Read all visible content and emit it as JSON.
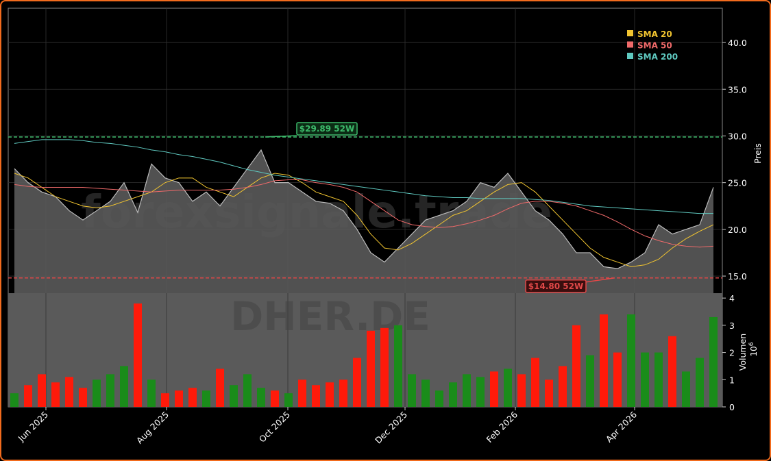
{
  "chart_data": {
    "type": "stock",
    "ticker_watermark": "DHER.DE",
    "site_watermark": "forexsignale.trade",
    "ylabel": "Preis",
    "volume_label": "Volumen",
    "volume_multiplier": {
      "base": "10",
      "exponent": "6"
    },
    "ylim": [
      13.17,
      43.67
    ],
    "yticks": [
      {
        "value": 15,
        "label": "15.0"
      },
      {
        "value": 20,
        "label": "20.0"
      },
      {
        "value": 25,
        "label": "25.0"
      },
      {
        "value": 30,
        "label": "30.0"
      },
      {
        "value": 35,
        "label": "35.0"
      },
      {
        "value": 40,
        "label": "40.0"
      }
    ],
    "volume_ylim": [
      0,
      4.18
    ],
    "volume_yticks": [
      0,
      1,
      2,
      3,
      4
    ],
    "xlim": [
      -0.45,
      51.65
    ],
    "xticks": [
      {
        "value": 2.3,
        "label": "Jun 2025"
      },
      {
        "value": 11.1,
        "label": "Aug 2025"
      },
      {
        "value": 19.95,
        "label": "Oct 2025"
      },
      {
        "value": 28.5,
        "label": "Dec 2025"
      },
      {
        "value": 36.55,
        "label": "Feb 2026"
      },
      {
        "value": 45.25,
        "label": "Apr 2026"
      }
    ],
    "grid": true,
    "legend_position": "upper right",
    "price": {
      "color": "#5a5a5a",
      "line_color": "#bdbdbd",
      "values": [
        26.5,
        25.0,
        24.0,
        23.5,
        22.0,
        21.0,
        22.0,
        23.0,
        25.0,
        21.8,
        27.0,
        25.5,
        25.0,
        23.0,
        24.0,
        22.5,
        24.5,
        26.5,
        28.5,
        25.0,
        25.0,
        24.0,
        23.0,
        22.8,
        22.0,
        20.0,
        17.5,
        16.5,
        18.0,
        19.5,
        21.0,
        21.5,
        22.0,
        23.0,
        25.0,
        24.5,
        26.0,
        24.0,
        22.0,
        21.0,
        19.5,
        17.5,
        17.5,
        16.0,
        15.8,
        16.5,
        17.5,
        20.5,
        19.5,
        20.0,
        20.5,
        24.5
      ]
    },
    "volume": {
      "up_color": "#1a8c1a",
      "down_color": "#ff1a0a",
      "values": [
        0.5,
        0.8,
        1.2,
        0.9,
        1.1,
        0.7,
        1.0,
        1.2,
        1.5,
        3.8,
        1.0,
        0.5,
        0.6,
        0.7,
        0.6,
        1.4,
        0.8,
        1.2,
        0.7,
        0.6,
        0.5,
        1.0,
        0.8,
        0.9,
        1.0,
        1.8,
        2.8,
        2.9,
        3.0,
        1.2,
        1.0,
        0.6,
        0.9,
        1.2,
        1.1,
        1.3,
        1.4,
        1.2,
        1.8,
        1.0,
        1.5,
        3.0,
        1.9,
        3.4,
        2.0,
        3.4,
        2.0,
        2.0,
        2.6,
        1.3,
        1.8,
        3.3
      ]
    },
    "series": [
      {
        "name": "SMA 20",
        "color": "#f2c530",
        "values": [
          26.0,
          25.5,
          24.5,
          23.5,
          23.0,
          22.5,
          22.3,
          22.5,
          23.0,
          23.5,
          24.0,
          25.0,
          25.5,
          25.5,
          24.5,
          24.0,
          23.5,
          24.5,
          25.5,
          26.0,
          25.8,
          25.0,
          24.0,
          23.5,
          23.0,
          21.5,
          19.5,
          18.0,
          17.8,
          18.5,
          19.5,
          20.5,
          21.5,
          22.0,
          23.0,
          24.0,
          24.8,
          25.0,
          24.0,
          22.5,
          21.0,
          19.5,
          18.0,
          17.0,
          16.5,
          16.0,
          16.2,
          16.8,
          18.0,
          19.0,
          19.8,
          20.5
        ]
      },
      {
        "name": "SMA 50",
        "color": "#f06a6a",
        "values": [
          24.8,
          24.6,
          24.5,
          24.5,
          24.5,
          24.5,
          24.4,
          24.3,
          24.2,
          24.1,
          24.0,
          24.1,
          24.2,
          24.2,
          24.2,
          24.2,
          24.3,
          24.5,
          24.8,
          25.2,
          25.3,
          25.3,
          25.0,
          24.8,
          24.5,
          24.0,
          23.0,
          22.0,
          21.0,
          20.5,
          20.3,
          20.2,
          20.3,
          20.6,
          21.0,
          21.5,
          22.2,
          22.8,
          23.0,
          23.0,
          22.8,
          22.5,
          22.0,
          21.5,
          20.8,
          20.0,
          19.3,
          18.8,
          18.4,
          18.2,
          18.1,
          18.2
        ]
      },
      {
        "name": "SMA 200",
        "color": "#5fc9c0",
        "values": [
          29.2,
          29.4,
          29.6,
          29.6,
          29.6,
          29.5,
          29.3,
          29.2,
          29.0,
          28.8,
          28.5,
          28.3,
          28.0,
          27.8,
          27.5,
          27.2,
          26.8,
          26.4,
          26.1,
          25.8,
          25.6,
          25.4,
          25.2,
          25.0,
          24.8,
          24.6,
          24.4,
          24.2,
          24.0,
          23.8,
          23.6,
          23.5,
          23.4,
          23.4,
          23.3,
          23.3,
          23.3,
          23.3,
          23.2,
          23.1,
          22.9,
          22.7,
          22.5,
          22.4,
          22.3,
          22.2,
          22.1,
          22.0,
          21.9,
          21.8,
          21.7,
          21.7
        ]
      }
    ],
    "annotations": [
      {
        "value": 29.89,
        "label": "$29.89 52W",
        "color": "#3cb96a",
        "at": 18.3
      },
      {
        "value": 14.8,
        "label": "$14.80 52W",
        "color": "#e04848",
        "at": 43.8
      }
    ]
  }
}
